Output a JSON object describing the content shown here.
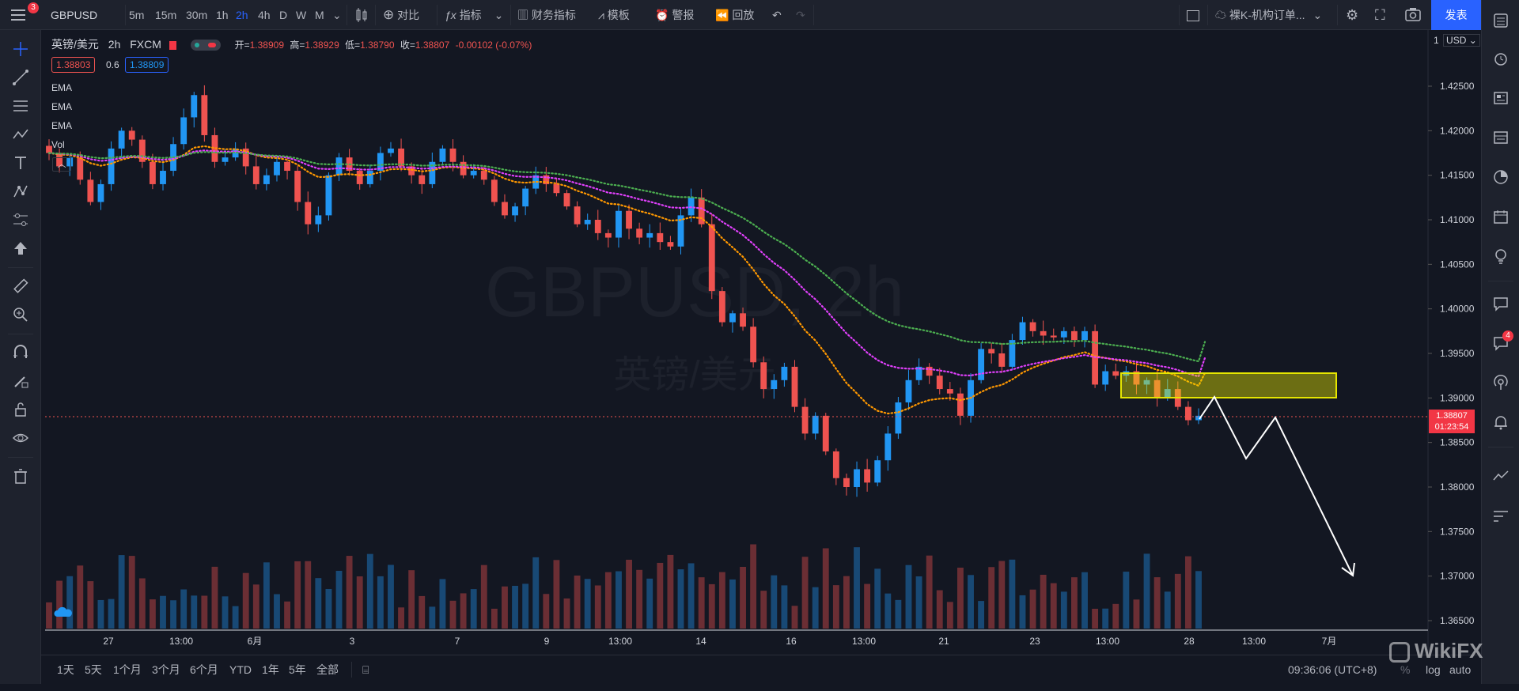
{
  "topbar": {
    "menu_badge": "3",
    "symbol": "GBPUSD",
    "timeframes": [
      "5m",
      "15m",
      "30m",
      "1h",
      "2h",
      "4h",
      "D",
      "W",
      "M"
    ],
    "active_timeframe": "2h",
    "compare": "对比",
    "indicators": "指标",
    "financials": "财务指标",
    "templates": "模板",
    "alerts": "警报",
    "replay": "回放",
    "layout_name": "裸K-机构订单...",
    "publish": "发表"
  },
  "legend": {
    "title": "英镑/美元",
    "interval": "2h",
    "exchange": "FXCM",
    "open_label": "开=",
    "open": "1.38909",
    "high_label": "高=",
    "high": "1.38929",
    "low_label": "低=",
    "low": "1.38790",
    "close_label": "收=",
    "close": "1.38807",
    "change": "-0.00102 (-0.07%)",
    "bid": "1.38803",
    "spread": "0.6",
    "ask": "1.38809",
    "indicators": [
      "EMA",
      "EMA",
      "EMA",
      "Vol"
    ]
  },
  "watermark": {
    "line1": "GBPUSD, 2h",
    "line2": "英镑/美元"
  },
  "price_axis": {
    "currency": "USD",
    "scale": "1",
    "ticks": [
      "1.42500",
      "1.42000",
      "1.41500",
      "1.41000",
      "1.40500",
      "1.40000",
      "1.39500",
      "1.39000",
      "1.38500",
      "1.38000",
      "1.37500",
      "1.37000",
      "1.36500"
    ],
    "last_price": "1.38807",
    "countdown": "01:23:54"
  },
  "time_axis": {
    "ticks": [
      "27",
      "13:00",
      "6月",
      "3",
      "7",
      "9",
      "13:00",
      "14",
      "16",
      "13:00",
      "21",
      "23",
      "13:00",
      "28",
      "13:00",
      "7月"
    ]
  },
  "bottombar": {
    "ranges": [
      "1天",
      "5天",
      "1个月",
      "3个月",
      "6个月",
      "YTD",
      "1年",
      "5年",
      "全部"
    ],
    "clock": "09:36:06 (UTC+8)",
    "percent": "%",
    "log": "log",
    "auto": "auto"
  },
  "rightbar": {
    "notification_badge": "4"
  },
  "branding": {
    "text": "WikiFX"
  },
  "colors": {
    "up": "#2196f3",
    "down": "#ef5350",
    "ema_fast": "#ff9800",
    "ema_mid": "#e040fb",
    "ema_slow": "#4caf50",
    "zone": "#e6e600",
    "accent": "#2962ff"
  },
  "chart_data": {
    "type": "candlestick",
    "symbol": "GBPUSD",
    "interval": "2h",
    "price_range": [
      1.3635,
      1.431
    ],
    "price_close": [
      1.4175,
      1.416,
      1.417,
      1.4145,
      1.412,
      1.414,
      1.418,
      1.42,
      1.419,
      1.4165,
      1.414,
      1.4155,
      1.4185,
      1.4215,
      1.424,
      1.4195,
      1.4165,
      1.417,
      1.418,
      1.416,
      1.414,
      1.415,
      1.4165,
      1.4155,
      1.412,
      1.4095,
      1.4105,
      1.415,
      1.417,
      1.4155,
      1.414,
      1.4155,
      1.4175,
      1.418,
      1.416,
      1.415,
      1.414,
      1.4165,
      1.418,
      1.4165,
      1.415,
      1.4155,
      1.4145,
      1.412,
      1.4105,
      1.4115,
      1.4135,
      1.415,
      1.414,
      1.413,
      1.4115,
      1.4095,
      1.41,
      1.4085,
      1.408,
      1.411,
      1.409,
      1.408,
      1.4085,
      1.4075,
      1.407,
      1.4105,
      1.4125,
      1.4095,
      1.402,
      1.3985,
      1.3995,
      1.398,
      1.394,
      1.391,
      1.392,
      1.3935,
      1.389,
      1.386,
      1.388,
      1.384,
      1.381,
      1.38,
      1.382,
      1.3805,
      1.383,
      1.386,
      1.3895,
      1.392,
      1.3935,
      1.3925,
      1.391,
      1.3905,
      1.388,
      1.392,
      1.3955,
      1.395,
      1.3935,
      1.3965,
      1.3985,
      1.3975,
      1.397,
      1.3968,
      1.3975,
      1.3965,
      1.3975,
      1.3915,
      1.393,
      1.3925,
      1.393,
      1.3915,
      1.392,
      1.39,
      1.391,
      1.389,
      1.3875,
      1.388
    ],
    "ema_fast_last": 1.3928,
    "ema_mid_last": 1.3945,
    "ema_slow_last": 1.3963,
    "zone": {
      "price_high": 1.3927,
      "price_low": 1.3898
    },
    "last_price": 1.38807
  }
}
